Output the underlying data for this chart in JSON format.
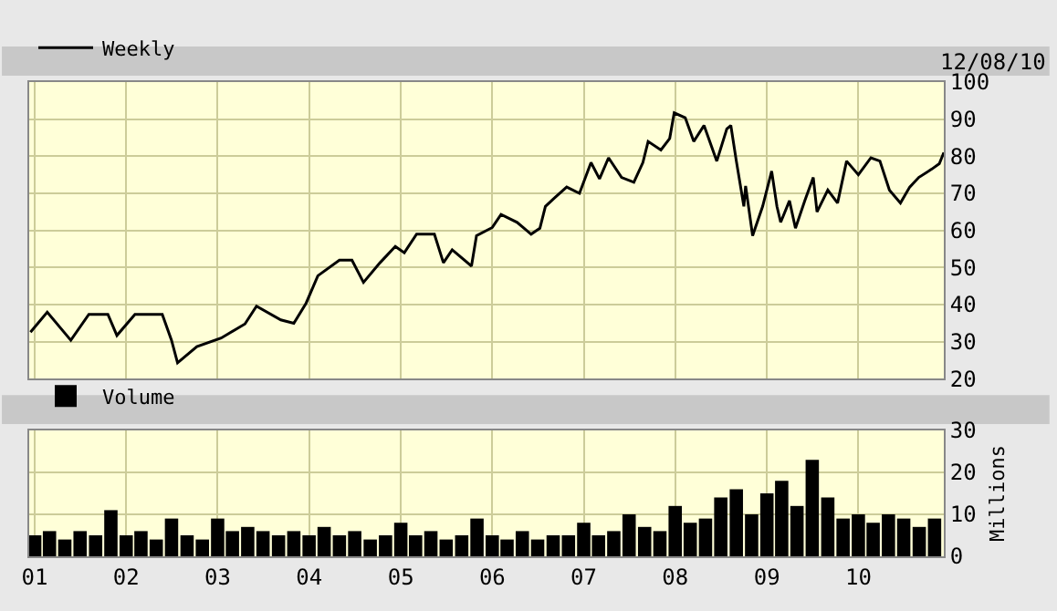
{
  "chart_data": [
    {
      "type": "line",
      "tick_labels": "y",
      "legend": "top left",
      "grid": true,
      "marker": "none",
      "line_style": "solid",
      "annotations": [
        "12/08/10"
      ],
      "xlim": [
        "2000-12-10",
        "2010-12-08"
      ],
      "xticks": [
        {
          "value": "2001-01-01",
          "label": null
        },
        {
          "value": "2002-01-01",
          "label": null
        },
        {
          "value": "2003-01-01",
          "label": null
        },
        {
          "value": "2004-01-01",
          "label": null
        },
        {
          "value": "2005-01-01",
          "label": null
        },
        {
          "value": "2006-01-01",
          "label": null
        },
        {
          "value": "2007-01-01",
          "label": null
        },
        {
          "value": "2008-01-01",
          "label": null
        },
        {
          "value": "2009-01-01",
          "label": null
        },
        {
          "value": "2010-01-01",
          "label": null
        }
      ],
      "ylim": [
        20,
        100
      ],
      "yticks": [
        20,
        30,
        40,
        50,
        60,
        70,
        80,
        90,
        100
      ],
      "x": [
        "2000-12-15",
        "2001-02-20",
        "2001-05-25",
        "2001-08-05",
        "2001-10-20",
        "2001-11-25",
        "2002-02-05",
        "2002-05-25",
        "2002-07-01",
        "2002-07-25",
        "2002-10-10",
        "2003-01-15",
        "2003-04-20",
        "2003-06-05",
        "2003-09-10",
        "2003-11-01",
        "2003-12-20",
        "2004-02-05",
        "2004-05-01",
        "2004-06-20",
        "2004-08-05",
        "2004-10-10",
        "2004-12-10",
        "2005-01-15",
        "2005-03-05",
        "2005-05-15",
        "2005-06-20",
        "2005-07-25",
        "2005-10-10",
        "2005-10-30",
        "2006-01-01",
        "2006-02-05",
        "2006-04-10",
        "2006-06-05",
        "2006-07-10",
        "2006-08-01",
        "2006-09-05",
        "2006-10-25",
        "2006-12-15",
        "2007-01-30",
        "2007-03-05",
        "2007-04-10",
        "2007-06-01",
        "2007-07-20",
        "2007-08-25",
        "2007-09-15",
        "2007-11-05",
        "2007-12-10",
        "2007-12-28",
        "2008-02-10",
        "2008-03-15",
        "2008-04-25",
        "2008-06-15",
        "2008-07-25",
        "2008-08-10",
        "2008-09-01",
        "2008-10-01",
        "2008-10-08",
        "2008-11-05",
        "2008-12-15",
        "2009-01-20",
        "2009-02-10",
        "2009-02-25",
        "2009-04-01",
        "2009-04-25",
        "2009-06-01",
        "2009-07-05",
        "2009-07-20",
        "2009-09-01",
        "2009-10-10",
        "2009-11-15",
        "2010-01-01",
        "2010-02-20",
        "2010-03-28",
        "2010-05-05",
        "2010-06-18",
        "2010-07-25",
        "2010-08-30",
        "2010-10-20",
        "2010-11-20",
        "2010-12-08"
      ],
      "series": [
        {
          "name": "Weekly",
          "color": "#000000",
          "values": [
            32.6,
            38,
            30.4,
            37.4,
            37.4,
            31.7,
            37.4,
            37.4,
            30.4,
            24.3,
            28.7,
            31,
            34.8,
            39.6,
            35.9,
            35,
            40.4,
            47.8,
            52,
            52,
            46,
            51.3,
            55.7,
            54,
            59,
            59,
            51.3,
            54.8,
            50.4,
            58.6,
            60.8,
            64.3,
            62.2,
            59,
            60.6,
            66.5,
            68.7,
            71.7,
            70,
            78.3,
            73.9,
            79.6,
            74.3,
            73,
            78.3,
            84,
            81.7,
            84.8,
            91.7,
            90.4,
            84,
            88.3,
            78.7,
            87.4,
            88.3,
            78.7,
            66.5,
            72,
            58.6,
            66.5,
            76,
            66.5,
            62.2,
            68,
            60.6,
            68,
            74.3,
            65,
            70.9,
            67.4,
            78.7,
            75,
            79.6,
            78.7,
            70.9,
            67.4,
            71.7,
            74.3,
            76.5,
            78,
            81
          ]
        }
      ]
    },
    {
      "type": "bar",
      "legend": "top left",
      "grid": true,
      "ylabel": "Millions",
      "xlim": [
        "2000-12-10",
        "2010-12-08"
      ],
      "xticks": [
        {
          "value": "2001-01-01",
          "label": "01"
        },
        {
          "value": "2002-01-01",
          "label": "02"
        },
        {
          "value": "2003-01-01",
          "label": "03"
        },
        {
          "value": "2004-01-01",
          "label": "04"
        },
        {
          "value": "2005-01-01",
          "label": "05"
        },
        {
          "value": "2006-01-01",
          "label": "06"
        },
        {
          "value": "2007-01-01",
          "label": "07"
        },
        {
          "value": "2008-01-01",
          "label": "08"
        },
        {
          "value": "2009-01-01",
          "label": "09"
        },
        {
          "value": "2010-01-01",
          "label": "10"
        }
      ],
      "ylim": [
        0,
        30
      ],
      "yticks": [
        0,
        10,
        20,
        30
      ],
      "x": [
        "2001-01-01",
        "2001-03-01",
        "2001-05-01",
        "2001-07-01",
        "2001-09-01",
        "2001-11-01",
        "2002-01-01",
        "2002-03-01",
        "2002-05-01",
        "2002-07-01",
        "2002-09-01",
        "2002-11-01",
        "2003-01-01",
        "2003-03-01",
        "2003-05-01",
        "2003-07-01",
        "2003-09-01",
        "2003-11-01",
        "2004-01-01",
        "2004-03-01",
        "2004-05-01",
        "2004-07-01",
        "2004-09-01",
        "2004-11-01",
        "2005-01-01",
        "2005-03-01",
        "2005-05-01",
        "2005-07-01",
        "2005-09-01",
        "2005-11-01",
        "2006-01-01",
        "2006-03-01",
        "2006-05-01",
        "2006-07-01",
        "2006-09-01",
        "2006-11-01",
        "2007-01-01",
        "2007-03-01",
        "2007-05-01",
        "2007-07-01",
        "2007-09-01",
        "2007-11-01",
        "2008-01-01",
        "2008-03-01",
        "2008-05-01",
        "2008-07-01",
        "2008-09-01",
        "2008-11-01",
        "2009-01-01",
        "2009-03-01",
        "2009-05-01",
        "2009-07-01",
        "2009-09-01",
        "2009-11-01",
        "2010-01-01",
        "2010-03-01",
        "2010-05-01",
        "2010-07-01",
        "2010-09-01",
        "2010-11-01"
      ],
      "series": [
        {
          "name": "Volume",
          "color": "#000000",
          "values": [
            5,
            6,
            4,
            6,
            5,
            11,
            5,
            6,
            4,
            9,
            5,
            4,
            9,
            6,
            7,
            6,
            5,
            6,
            5,
            7,
            5,
            6,
            4,
            5,
            8,
            5,
            6,
            4,
            5,
            9,
            5,
            4,
            6,
            4,
            5,
            5,
            8,
            5,
            6,
            10,
            7,
            6,
            12,
            8,
            9,
            14,
            16,
            10,
            15,
            18,
            12,
            23,
            14,
            9,
            10,
            8,
            10,
            9,
            7,
            9
          ]
        }
      ]
    }
  ]
}
